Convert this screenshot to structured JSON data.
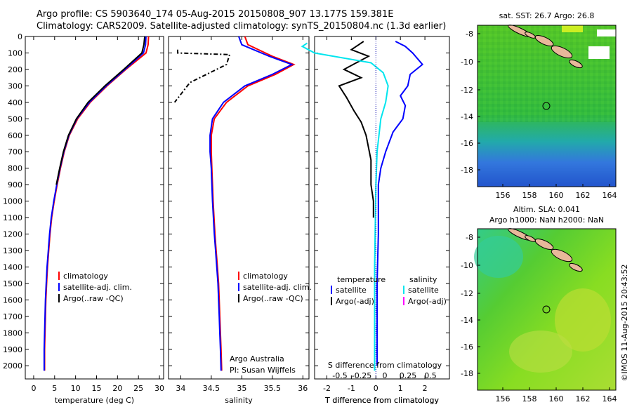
{
  "header": {
    "line1": "Argo profile: CS 5903640_174 05-Aug-2015 20150808_907 13.177S 159.381E",
    "line2": "Climatology: CARS2009. Satellite-adjusted climatology: synTS_20150804.nc (1.3d earlier)"
  },
  "colors": {
    "climatology": "#ff0000",
    "satellite": "#0000ff",
    "argo": "#000000",
    "s_satellite": "#00e5ee",
    "s_argo": "#ff00ff"
  },
  "chart_data": [
    {
      "type": "line",
      "id": "temperature",
      "xlabel": "temperature (deg C)",
      "ylabel": "",
      "xlim": [
        -2,
        31
      ],
      "ylim": [
        2080,
        0
      ],
      "xticks": [
        0,
        5,
        10,
        15,
        20,
        25,
        30
      ],
      "yticks": [
        0,
        100,
        200,
        300,
        400,
        500,
        600,
        700,
        800,
        900,
        1000,
        1100,
        1200,
        1300,
        1400,
        1500,
        1600,
        1700,
        1800,
        1900,
        2000
      ],
      "legend": [
        "climatology",
        "satellite-adj. clim.",
        "Argo(..raw -QC)"
      ],
      "series": [
        {
          "name": "climatology",
          "color": "red",
          "x": [
            27.4,
            27.3,
            26.8,
            22,
            17.5,
            13.5,
            10.5,
            8.5,
            7.3,
            6.4,
            5.6,
            4.9,
            4.3,
            3.9,
            3.6,
            3.3,
            3.1,
            2.9,
            2.8,
            2.7,
            2.6,
            2.6
          ],
          "y": [
            0,
            50,
            100,
            200,
            300,
            400,
            500,
            600,
            700,
            800,
            900,
            1000,
            1100,
            1200,
            1300,
            1400,
            1500,
            1600,
            1700,
            1800,
            1900,
            2030
          ]
        },
        {
          "name": "satellite-adj. clim.",
          "color": "blue",
          "x": [
            26.8,
            26.7,
            26.2,
            21.8,
            17.3,
            13.3,
            10.3,
            8.4,
            7.2,
            6.3,
            5.5,
            4.8,
            4.2,
            3.8,
            3.5,
            3.2,
            3.0,
            2.8,
            2.7,
            2.6,
            2.5,
            2.5
          ],
          "y": [
            0,
            50,
            100,
            200,
            300,
            400,
            500,
            600,
            700,
            800,
            900,
            1000,
            1100,
            1200,
            1300,
            1400,
            1500,
            1600,
            1700,
            1800,
            1900,
            2030
          ]
        },
        {
          "name": "Argo(..raw -QC)",
          "color": "black",
          "x": [
            26.5,
            26.3,
            25.8,
            21.5,
            17.0,
            13.0,
            10.2,
            8.3,
            7.1,
            6.2,
            5.4
          ],
          "y": [
            0,
            50,
            100,
            200,
            300,
            400,
            500,
            600,
            700,
            800,
            900
          ]
        }
      ]
    },
    {
      "type": "line",
      "id": "salinity",
      "xlabel": "salinity",
      "ylabel": "",
      "xlim": [
        33.8,
        36.1
      ],
      "xticks": [
        34,
        34.5,
        35,
        35.5,
        36
      ],
      "legend": [
        "climatology",
        "satellite-adj. clim.",
        "Argo(..raw -QC)"
      ],
      "annotation": [
        "Argo Australia",
        "PI: Susan Wijffels"
      ],
      "series": [
        {
          "name": "climatology",
          "color": "red",
          "x": [
            35.05,
            35.1,
            35.5,
            35.85,
            35.55,
            35.1,
            34.75,
            34.55,
            34.5,
            34.5,
            34.51,
            34.53,
            34.56,
            34.58,
            34.6,
            34.62,
            34.63,
            34.64,
            34.65,
            34.66,
            34.67
          ],
          "y": [
            0,
            50,
            120,
            170,
            230,
            300,
            400,
            500,
            600,
            700,
            800,
            1000,
            1200,
            1300,
            1400,
            1500,
            1600,
            1700,
            1800,
            1900,
            2030
          ]
        },
        {
          "name": "satellite-adj. clim.",
          "color": "blue",
          "x": [
            34.95,
            35.0,
            35.45,
            35.82,
            35.5,
            35.05,
            34.7,
            34.52,
            34.48,
            34.48,
            34.5,
            34.52,
            34.55,
            34.57,
            34.59,
            34.61,
            34.62,
            34.63,
            34.64,
            34.65,
            34.66
          ],
          "y": [
            0,
            50,
            120,
            170,
            230,
            300,
            400,
            500,
            600,
            700,
            800,
            1000,
            1200,
            1300,
            1400,
            1500,
            1600,
            1700,
            1800,
            1900,
            2030
          ]
        },
        {
          "name": "Argo(..raw -QC)",
          "color": "black",
          "x": [
            33.95,
            33.95,
            34.8,
            34.75,
            34.15,
            33.9
          ],
          "y": [
            80,
            100,
            110,
            170,
            280,
            400
          ]
        }
      ]
    },
    {
      "type": "line",
      "id": "difference",
      "xlabel": "T difference from climatology",
      "xlabel2": "S difference from climatology",
      "xlim": [
        -2.5,
        3
      ],
      "xticks": [
        -2,
        -1,
        0,
        1,
        2
      ],
      "xticks2_labels": [
        "-0.5",
        "-0.25",
        "0",
        "0.25",
        "0.5"
      ],
      "legend": {
        "temperature": [
          "satellite",
          "Argo(-adj)"
        ],
        "salinity": [
          "satellite",
          "Argo(-adj)"
        ]
      },
      "legend_titles": [
        "temperature",
        "salinity"
      ],
      "series": [
        {
          "name": "temperature satellite",
          "color": "blue",
          "x": [
            0.8,
            1.2,
            1.5,
            1.9,
            1.4,
            1.3,
            1.0,
            1.2,
            1.1,
            0.7,
            0.4,
            0.2,
            0.1,
            0.1,
            0.05,
            0.05,
            0.05
          ],
          "y": [
            30,
            60,
            100,
            170,
            230,
            300,
            360,
            420,
            500,
            580,
            700,
            800,
            900,
            1200,
            1500,
            1800,
            2000
          ]
        },
        {
          "name": "temperature Argo(-adj)",
          "color": "black",
          "x": [
            -0.5,
            -1.0,
            -0.3,
            -1.3,
            -0.6,
            -1.5,
            -1.2,
            -0.9,
            -0.6,
            -0.4,
            -0.2,
            -0.2,
            -0.1,
            -0.1
          ],
          "y": [
            30,
            80,
            120,
            200,
            250,
            300,
            370,
            450,
            520,
            600,
            750,
            900,
            1000,
            1100
          ]
        },
        {
          "name": "salinity satellite",
          "color": "cyan",
          "x": [
            -2.8,
            -3.0,
            -2.5,
            -0.2,
            0.3,
            0.5,
            0.4,
            0.2,
            0.05,
            0.0,
            -0.05,
            -0.05
          ],
          "y": [
            40,
            60,
            100,
            160,
            220,
            300,
            400,
            500,
            700,
            900,
            1400,
            2030
          ]
        }
      ]
    }
  ],
  "maps": [
    {
      "title": "sat. SST: 26.7 Argo: 26.8",
      "xticks": [
        "156",
        "158",
        "160",
        "162",
        "164"
      ],
      "yticks": [
        "-8",
        "-10",
        "-12",
        "-14",
        "-16",
        "-18"
      ]
    },
    {
      "title": "Altim. SLA: 0.041",
      "title2": "Argo h1000: NaN h2000: NaN",
      "xticks": [
        "156",
        "158",
        "160",
        "162",
        "164"
      ],
      "yticks": [
        "-8",
        "-10",
        "-12",
        "-14",
        "-16",
        "-18"
      ]
    }
  ],
  "side_label": "©IMOS 11-Aug-2015 20:43:52"
}
